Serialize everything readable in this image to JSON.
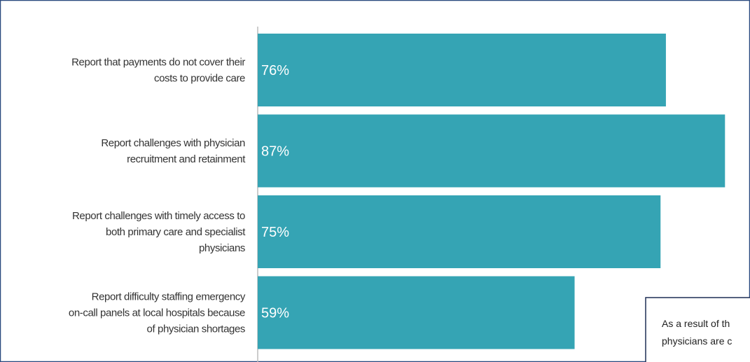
{
  "chart_data": {
    "type": "bar",
    "orientation": "horizontal",
    "categories": [
      [
        "Report that payments do not cover their",
        "costs to provide care"
      ],
      [
        "Report challenges with physician",
        "recruitment and retainment"
      ],
      [
        "Report challenges with timely access to",
        "both primary care and specialist",
        "physicians"
      ],
      [
        "Report difficulty staffing emergency",
        "on-call panels at local hospitals because",
        "of physician shortages"
      ]
    ],
    "values": [
      76,
      87,
      75,
      59
    ],
    "value_labels": [
      "76%",
      "87%",
      "75%",
      "59%"
    ],
    "color": "#35a4b4",
    "annotation": [
      "As a result of th",
      "physicians are c"
    ]
  }
}
